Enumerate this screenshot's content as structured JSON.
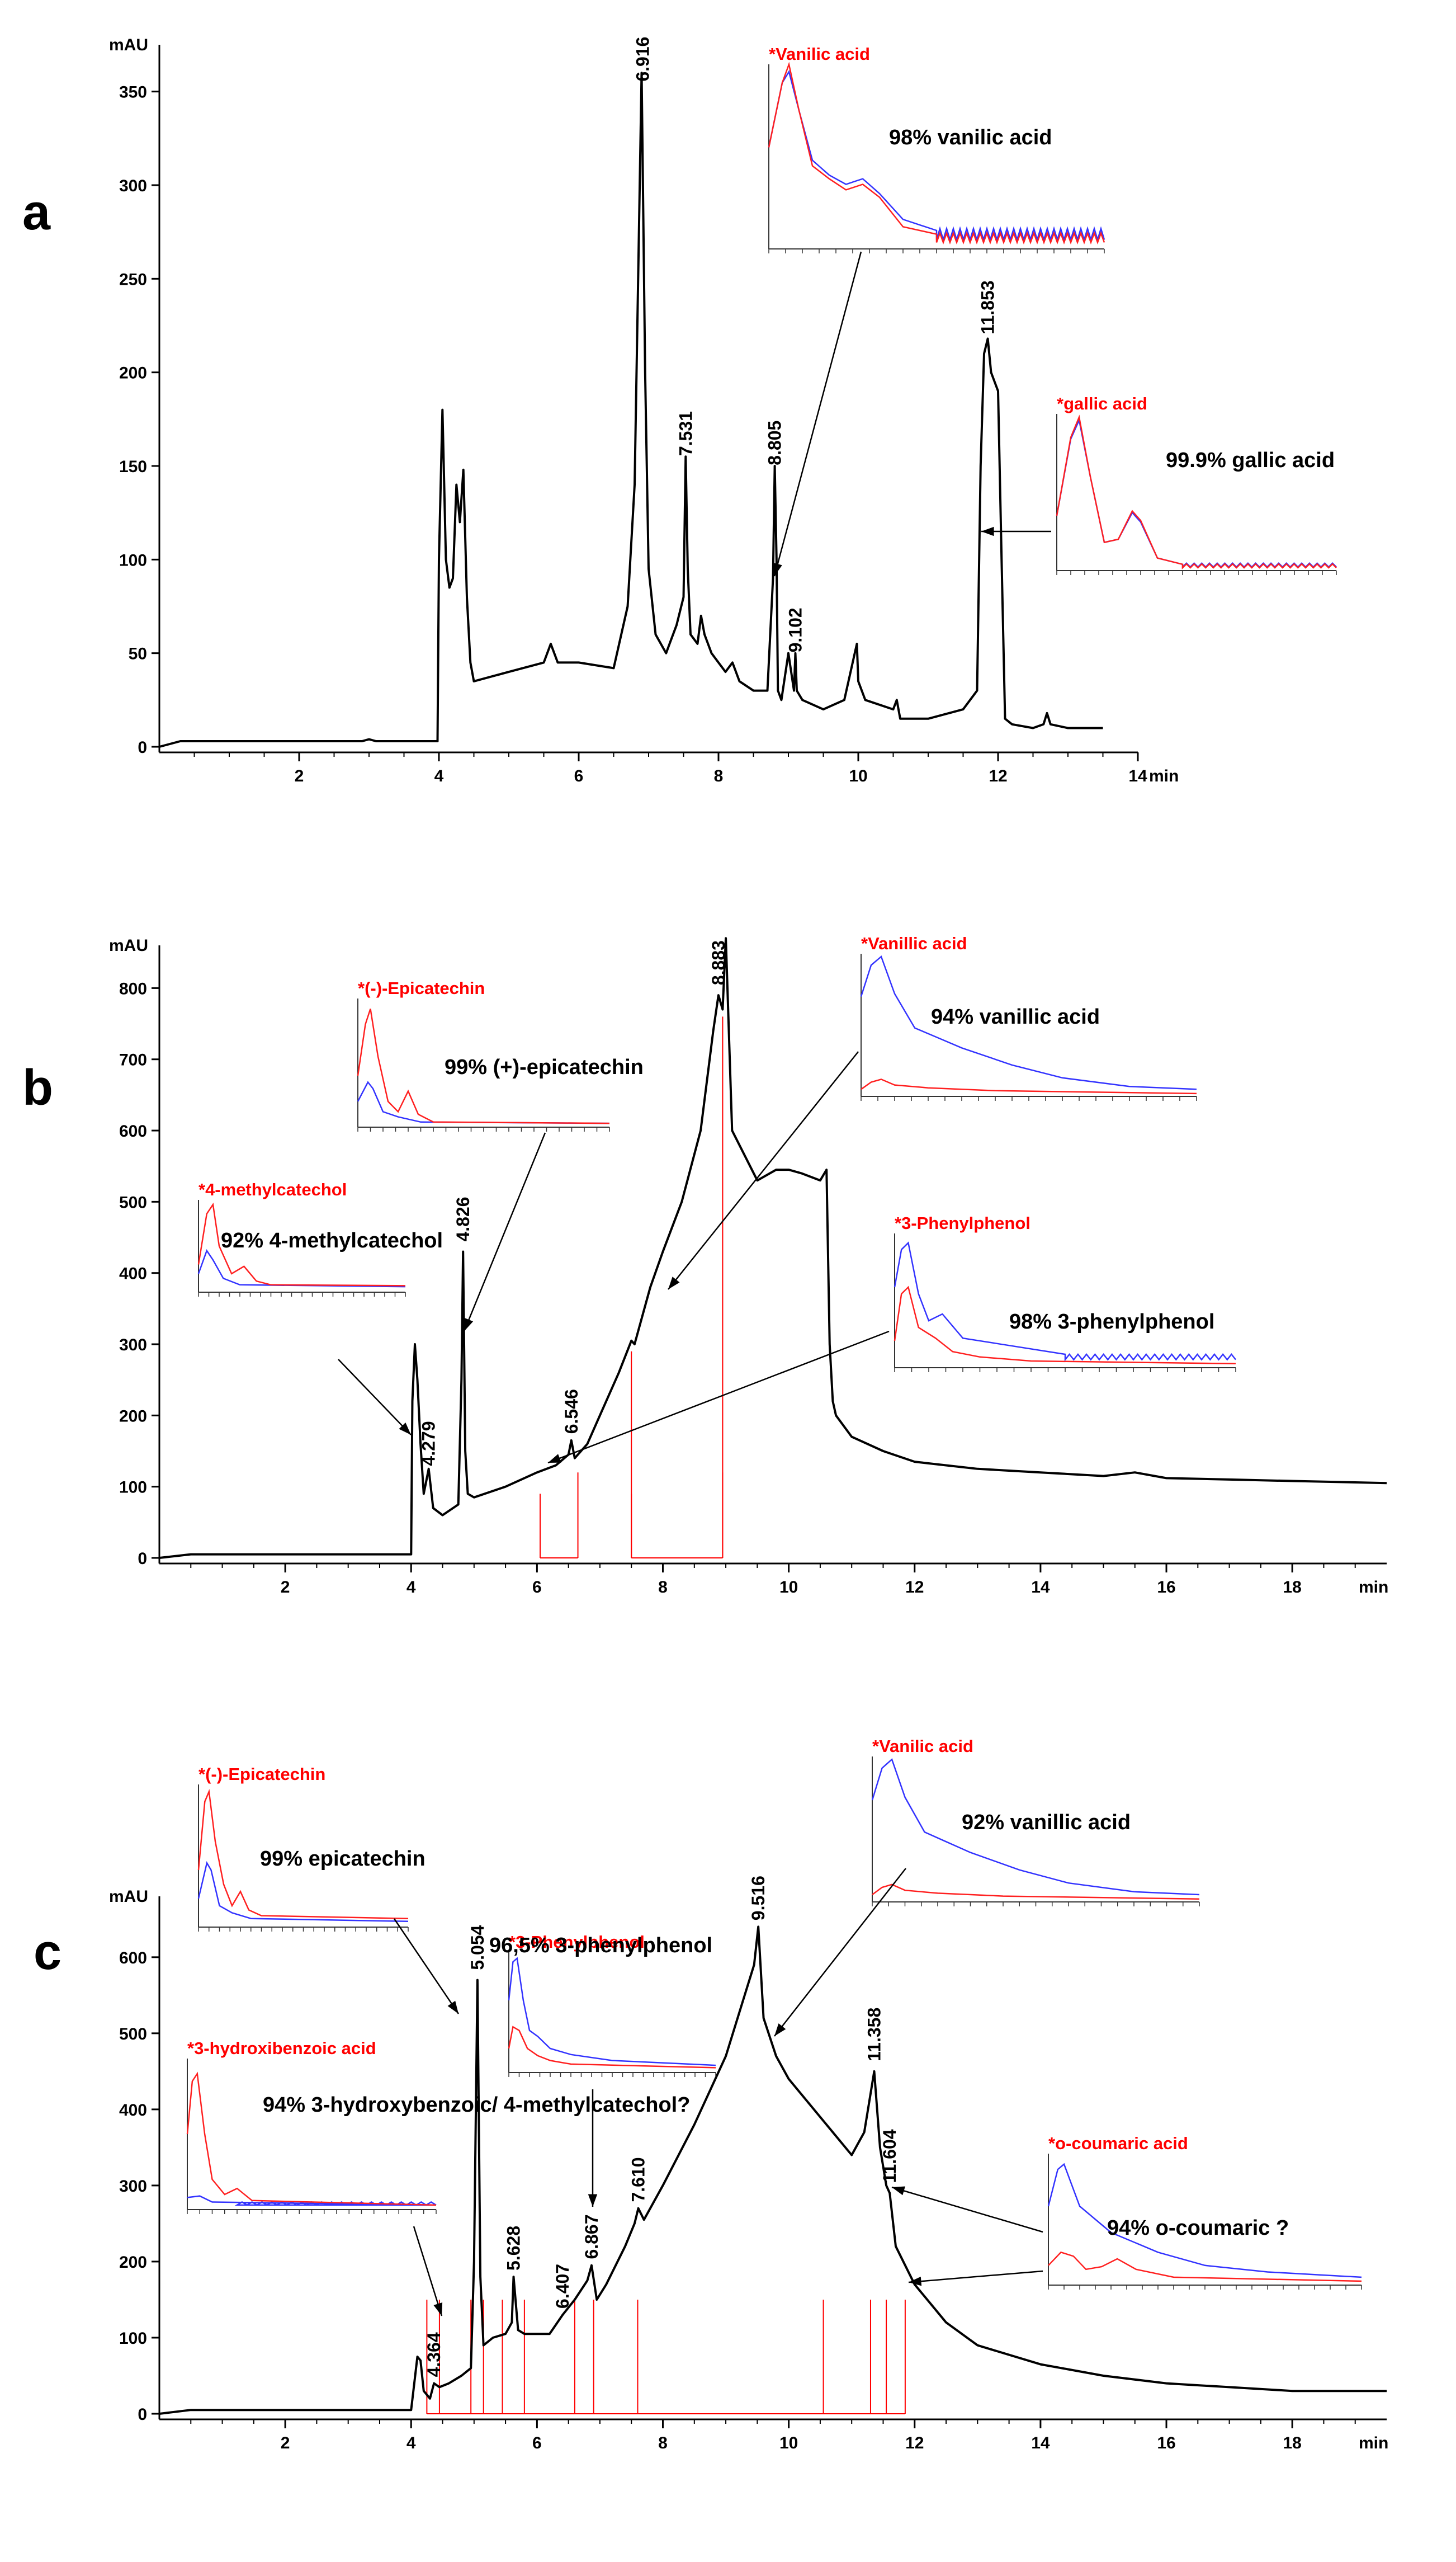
{
  "chart_data": [
    {
      "panel": "a",
      "type": "line",
      "ylabel": "mAU",
      "xlabel": "min",
      "xlim": [
        0,
        14
      ],
      "ylim": [
        0,
        375
      ],
      "xticks": [
        "2",
        "4",
        "6",
        "8",
        "10",
        "12",
        "14"
      ],
      "yticks": [
        "0",
        "50",
        "100",
        "150",
        "200",
        "250",
        "300",
        "350"
      ],
      "series": [
        {
          "name": "chromatogram a",
          "x": [
            0,
            0.3,
            2.9,
            3,
            3.1,
            3.98,
            4,
            4.05,
            4.1,
            4.15,
            4.2,
            4.25,
            4.3,
            4.35,
            4.4,
            4.45,
            4.5,
            5,
            5.5,
            5.6,
            5.7,
            6,
            6.5,
            6.7,
            6.8,
            6.85,
            6.9,
            6.95,
            7,
            7.1,
            7.25,
            7.3,
            7.4,
            7.5,
            7.53,
            7.56,
            7.6,
            7.7,
            7.75,
            7.8,
            7.9,
            8,
            8.1,
            8.2,
            8.3,
            8.5,
            8.7,
            8.78,
            8.805,
            8.83,
            8.85,
            8.9,
            9,
            9.08,
            9.1,
            9.12,
            9.2,
            9.5,
            9.8,
            9.95,
            9.98,
            10,
            10.1,
            10.5,
            10.55,
            10.6,
            11,
            11.5,
            11.7,
            11.75,
            11.8,
            11.853,
            11.9,
            12,
            12.05,
            12.1,
            12.2,
            12.5,
            12.65,
            12.7,
            12.75,
            13,
            13.5
          ],
          "y": [
            0,
            3,
            3,
            4,
            3,
            3,
            100,
            180,
            100,
            85,
            90,
            140,
            120,
            148,
            80,
            45,
            35,
            40,
            45,
            55,
            45,
            45,
            42,
            75,
            140,
            250,
            360,
            200,
            95,
            60,
            50,
            55,
            65,
            80,
            155,
            95,
            60,
            55,
            70,
            60,
            50,
            45,
            40,
            45,
            35,
            30,
            30,
            90,
            150,
            100,
            30,
            25,
            50,
            30,
            50,
            30,
            25,
            20,
            25,
            50,
            55,
            35,
            25,
            20,
            25,
            15,
            15,
            20,
            30,
            150,
            210,
            218,
            200,
            190,
            100,
            15,
            12,
            10,
            12,
            18,
            12,
            10,
            10
          ]
        }
      ],
      "labels": [
        "6.916",
        "7.531",
        "8.805",
        "9.102",
        "11.853"
      ],
      "insets": [
        {
          "title": "*Vanilic acid",
          "match": "98%  vanilic acid"
        },
        {
          "title": "*gallic acid",
          "match": "99.9%  gallic acid"
        }
      ]
    },
    {
      "panel": "b",
      "type": "line",
      "ylabel": "mAU",
      "xlabel": "min",
      "xlim": [
        0,
        19.5
      ],
      "ylim": [
        0,
        860
      ],
      "xticks": [
        "2",
        "4",
        "6",
        "8",
        "10",
        "12",
        "14",
        "16",
        "18"
      ],
      "yticks": [
        "0",
        "100",
        "200",
        "300",
        "400",
        "500",
        "600",
        "700",
        "800"
      ],
      "series": [
        {
          "name": "chromatogram b",
          "x": [
            0,
            0.5,
            1,
            2,
            3,
            4,
            4.02,
            4.06,
            4.1,
            4.15,
            4.2,
            4.279,
            4.35,
            4.5,
            4.75,
            4.8,
            4.826,
            4.86,
            4.9,
            5,
            5.5,
            6,
            6.3,
            6.5,
            6.546,
            6.6,
            6.8,
            7,
            7.3,
            7.5,
            7.55,
            7.8,
            8,
            8.3,
            8.6,
            8.8,
            8.883,
            8.95,
            9,
            9.1,
            9.5,
            9.8,
            10,
            10.2,
            10.5,
            10.6,
            10.65,
            10.7,
            10.75,
            11,
            11.5,
            12,
            12.5,
            13,
            14,
            15,
            15.5,
            16,
            17,
            18,
            19,
            19.5
          ],
          "y": [
            0,
            5,
            5,
            5,
            5,
            5,
            220,
            300,
            250,
            160,
            90,
            125,
            70,
            60,
            75,
            250,
            430,
            150,
            90,
            85,
            100,
            120,
            130,
            145,
            165,
            140,
            160,
            200,
            260,
            305,
            300,
            380,
            430,
            500,
            600,
            740,
            790,
            770,
            870,
            600,
            530,
            545,
            545,
            540,
            530,
            545,
            300,
            220,
            200,
            170,
            150,
            135,
            130,
            125,
            120,
            115,
            120,
            112,
            110,
            108,
            106,
            105
          ]
        }
      ],
      "labels": [
        "4.279",
        "4.826",
        "6.546",
        "8.883"
      ],
      "insets": [
        {
          "title": "*4-methylcatechol",
          "match": "92%  4-methylcatechol"
        },
        {
          "title": "*(-)-Epicatechin",
          "match": "99%  (+)-epicatechin"
        },
        {
          "title": "*Vanillic acid",
          "match": "94%  vanillic acid"
        },
        {
          "title": "*3-Phenylphenol",
          "match": "98%  3-phenylphenol"
        }
      ]
    },
    {
      "panel": "c",
      "type": "line",
      "ylabel": "mAU",
      "xlabel": "min",
      "xlim": [
        0,
        19.5
      ],
      "ylim": [
        0,
        680
      ],
      "xticks": [
        "2",
        "4",
        "6",
        "8",
        "10",
        "12",
        "14",
        "16",
        "18"
      ],
      "yticks": [
        "0",
        "100",
        "200",
        "300",
        "400",
        "500",
        "600"
      ],
      "series": [
        {
          "name": "chromatogram c",
          "x": [
            0,
            0.5,
            1,
            2,
            3,
            4,
            4.05,
            4.1,
            4.15,
            4.2,
            4.3,
            4.364,
            4.45,
            4.6,
            4.8,
            4.95,
            5,
            5.054,
            5.1,
            5.15,
            5.3,
            5.5,
            5.6,
            5.628,
            5.7,
            5.8,
            6,
            6.2,
            6.407,
            6.6,
            6.8,
            6.867,
            6.95,
            7.1,
            7.4,
            7.55,
            7.61,
            7.7,
            8,
            8.5,
            9,
            9.3,
            9.45,
            9.516,
            9.6,
            9.8,
            10,
            10.5,
            11,
            11.2,
            11.358,
            11.45,
            11.55,
            11.604,
            11.7,
            12,
            12.5,
            13,
            14,
            15,
            16,
            17,
            18,
            19,
            19.5
          ],
          "y": [
            0,
            5,
            5,
            5,
            5,
            5,
            40,
            75,
            70,
            30,
            20,
            40,
            35,
            40,
            50,
            60,
            200,
            570,
            180,
            90,
            100,
            105,
            120,
            180,
            110,
            105,
            105,
            105,
            130,
            150,
            175,
            195,
            150,
            170,
            220,
            250,
            270,
            255,
            300,
            380,
            470,
            550,
            590,
            640,
            520,
            470,
            440,
            390,
            340,
            370,
            450,
            350,
            300,
            290,
            220,
            170,
            120,
            90,
            65,
            50,
            40,
            35,
            30,
            30,
            30
          ]
        }
      ],
      "labels": [
        "4.364",
        "5.054",
        "5.628",
        "6.407",
        "6.867",
        "7.610",
        "9.516",
        "11.358",
        "11.604"
      ],
      "insets": [
        {
          "title": "*(-)-Epicatechin",
          "match": "99%  epicatechin"
        },
        {
          "title": "*3-hydroxibenzoic acid",
          "match": "94%  3-hydroxybenzoic/ 4-methylcatechol?"
        },
        {
          "title": "*3-Phenylphenol",
          "match": "96,5%  3-phenylphenol"
        },
        {
          "title": "*Vanilic acid",
          "match": "92% vanillic acid"
        },
        {
          "title": "*o-coumaric acid",
          "match": "94%  o-coumaric ?"
        }
      ]
    }
  ]
}
